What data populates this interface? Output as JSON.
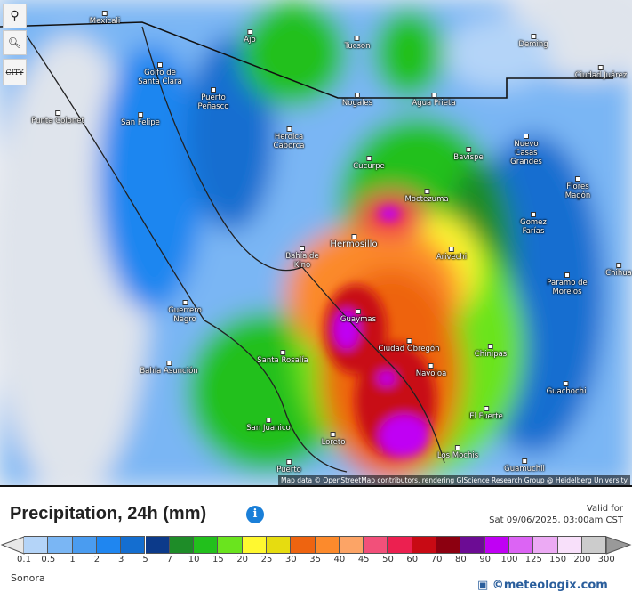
{
  "map": {
    "controls": {
      "locate": "map-pin-icon",
      "zoom": "zoom-icon",
      "city_toggle": "CITY"
    },
    "cities": [
      "Mexicali",
      "Ajo",
      "Tucson",
      "Deming",
      "Ciudad Juárez",
      "Golfo de Santa Clara",
      "Puerto Peñasco",
      "Nogales",
      "Agua Prieta",
      "Punta Colonet",
      "San Felipe",
      "Heroica Caborca",
      "Bavispe",
      "Nuevo Casas Grandes",
      "Cucurpe",
      "Moctezuma",
      "Flores Magón",
      "Gomez Farías",
      "Hermosillo",
      "Arivechi",
      "Bahía de Kino",
      "Chihua",
      "Paramo de Morelos",
      "Guerrero Negro",
      "Guaymas",
      "Ciudad Obregón",
      "Chinipas",
      "Santa Rosalía",
      "Bahía Asunción",
      "Navojoa",
      "Guachochi",
      "El Fuerte",
      "San Juanico",
      "Loreto",
      "Los Mochis",
      "Guamuchil",
      "Puerto"
    ],
    "attribution": "Map data © OpenStreetMap contributors, rendering GIScience Research Group @ Heidelberg University"
  },
  "legend": {
    "title": "Precipitation, 24h (mm)",
    "info_icon": "info-icon",
    "valid_label": "Valid for",
    "valid_time": "Sat 09/06/2025, 03:00am CST",
    "ticks": [
      "0.1",
      "0.5",
      "1",
      "2",
      "3",
      "5",
      "7",
      "10",
      "15",
      "20",
      "25",
      "30",
      "35",
      "40",
      "45",
      "50",
      "60",
      "70",
      "80",
      "90",
      "100",
      "125",
      "150",
      "200",
      "300"
    ],
    "colors": [
      "#b4d4f8",
      "#7ab6f4",
      "#4a9cf0",
      "#1f86f0",
      "#146ed0",
      "#0c3a8a",
      "#1e8c28",
      "#22c01c",
      "#6ae41e",
      "#fff830",
      "#e6dc10",
      "#ee6410",
      "#fc8a2c",
      "#fca466",
      "#f2507a",
      "#ec2050",
      "#c80a14",
      "#8c0010",
      "#6c0c94",
      "#c000f4",
      "#dc64f4",
      "#ecaaf4",
      "#f8e0fa",
      "#cccccc"
    ],
    "under_color": "#e8e8e8",
    "over_color": "#999999",
    "region": "Sonora",
    "logo": "meteologix.com"
  }
}
